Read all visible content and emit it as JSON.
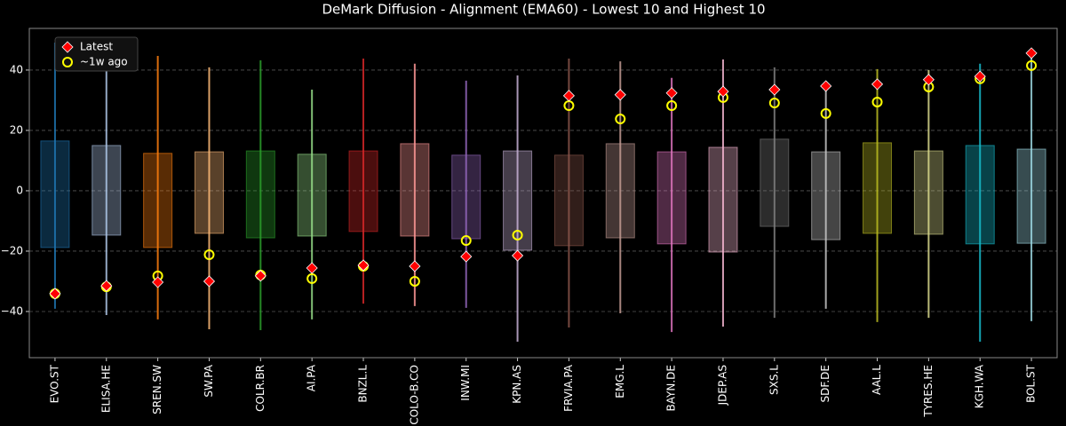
{
  "chart_data": {
    "type": "range",
    "title": "DeMark Diffusion - Alignment (EMA60) - Lowest 10 and Highest 10",
    "categories": [
      "EVO.ST",
      "ELISA.HE",
      "SREN.SW",
      "SW.PA",
      "COLR.BR",
      "AI.PA",
      "BNZL.L",
      "COLO-B.CO",
      "INW.MI",
      "KPN.AS",
      "FRVIA.PA",
      "EMG.L",
      "BAYN.DE",
      "JDEP.AS",
      "SXS.L",
      "SDF.DE",
      "AAL.L",
      "TYRES.HE",
      "KGH.WA",
      "BOL.ST"
    ],
    "colors": [
      "#1f77b4",
      "#aec7e8",
      "#ff7f0e",
      "#ffbb78",
      "#2ca02c",
      "#98df8a",
      "#d62728",
      "#ff9896",
      "#9467bd",
      "#c5b0d5",
      "#8c564b",
      "#c49c94",
      "#e377c2",
      "#f7b6d2",
      "#7f7f7f",
      "#c7c7c7",
      "#bcbd22",
      "#dbdb8d",
      "#17becf",
      "#9edae5"
    ],
    "range_min": [
      -39.1,
      -41.2,
      -42.6,
      -45.9,
      -46.2,
      -42.6,
      -37.4,
      -38.2,
      -38.8,
      -50,
      -45.3,
      -40.6,
      -46.8,
      -45,
      -42.1,
      -39.1,
      -43.5,
      -42.1,
      -50,
      -43.2
    ],
    "range_max": [
      49.1,
      42.6,
      44.7,
      40.9,
      43.2,
      33.5,
      43.8,
      42.1,
      36.5,
      38.2,
      43.8,
      42.9,
      37.4,
      43.5,
      40.9,
      35.6,
      40.3,
      40,
      42.1,
      45.6
    ],
    "box_low": [
      -18.8,
      -14.7,
      -18.8,
      -14.1,
      -15.6,
      -15,
      -13.5,
      -15,
      -15.9,
      -19.7,
      -18.2,
      -15.6,
      -17.6,
      -20.3,
      -11.8,
      -16.2,
      -14.1,
      -14.4,
      -17.6,
      -17.4
    ],
    "box_high": [
      16.5,
      15,
      12.4,
      12.9,
      13.2,
      12.1,
      13.2,
      15.6,
      11.8,
      13.2,
      11.8,
      15.6,
      12.9,
      14.4,
      17.1,
      12.9,
      15.9,
      13.2,
      15,
      13.8
    ],
    "series": [
      {
        "name": "Latest",
        "color": "#ff0000",
        "values": [
          -34.1,
          -31.5,
          -30.3,
          -30,
          -28.2,
          -25.6,
          -24.7,
          -25,
          -21.8,
          -21.5,
          31.5,
          31.8,
          32.4,
          32.9,
          33.5,
          34.7,
          35.3,
          36.8,
          37.9,
          45.6
        ]
      },
      {
        "name": "~1w ago",
        "color": "#ffff00",
        "values": [
          -34.1,
          -31.8,
          -28.2,
          -21.2,
          -27.9,
          -29.1,
          -25,
          -30,
          -16.5,
          -14.7,
          28.2,
          23.8,
          28.2,
          30.9,
          29.1,
          25.6,
          29.4,
          34.4,
          37.1,
          41.5
        ]
      }
    ],
    "ylim": [
      -55.3,
      53.8
    ],
    "yticks": [
      {
        "value": -40,
        "label": "−40"
      },
      {
        "value": -20,
        "label": "−20"
      },
      0,
      20,
      40
    ],
    "grid": true,
    "legend": "upper left"
  }
}
